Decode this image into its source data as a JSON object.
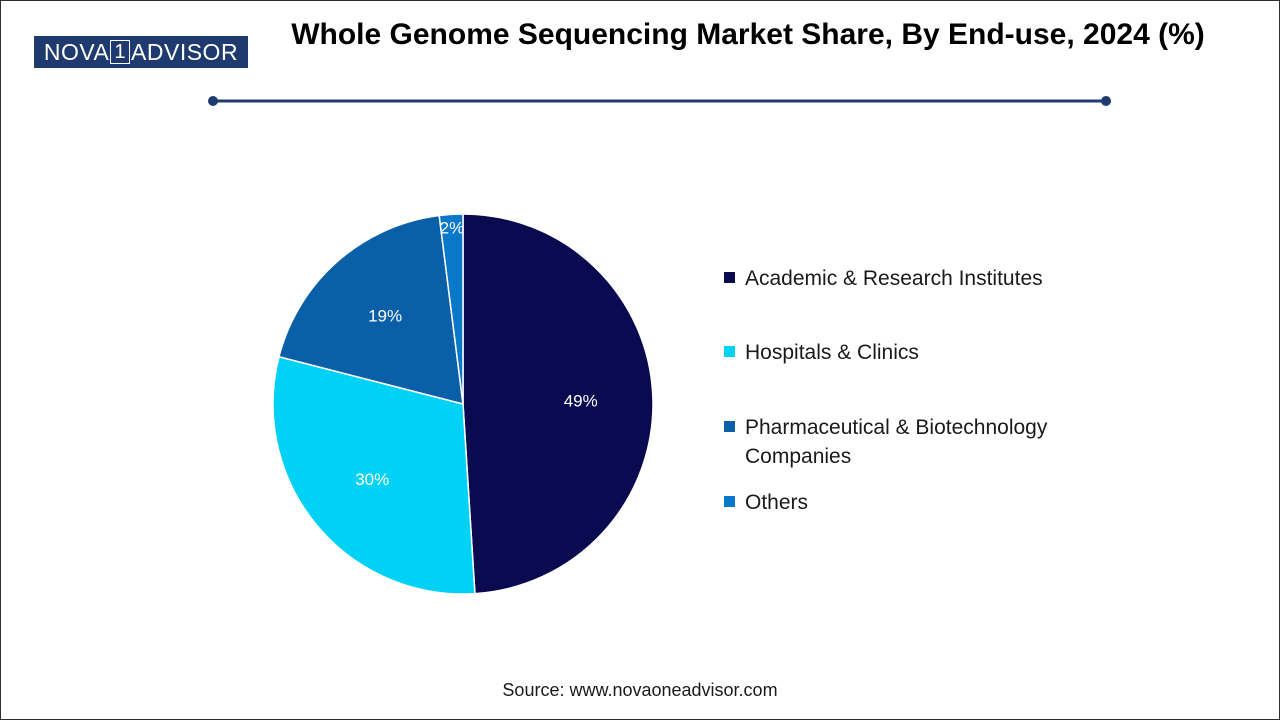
{
  "logo": {
    "prefix": "NOVA",
    "box": "1",
    "suffix": "ADVISOR"
  },
  "title": "Whole Genome Sequencing Market Share, By End-use, 2024 (%)",
  "source": "Source: www.novaoneadvisor.com",
  "colors": {
    "title_rule": "#1f3a6e",
    "slice_borders": "#ffffff"
  },
  "chart_data": {
    "type": "pie",
    "title": "Whole Genome Sequencing Market Share, By End-use, 2024 (%)",
    "legend_position": "right",
    "slices": [
      {
        "label": "Academic & Research Institutes",
        "value": 49,
        "display": "49%",
        "color": "#0a0a50"
      },
      {
        "label": "Hospitals & Clinics",
        "value": 30,
        "display": "30%",
        "color": "#00d2f5"
      },
      {
        "label": "Pharmaceutical & Biotechnology Companies",
        "value": 19,
        "display": "19%",
        "color": "#0a60a8"
      },
      {
        "label": "Others",
        "value": 2,
        "display": "2%",
        "color": "#0a78c8"
      }
    ]
  }
}
